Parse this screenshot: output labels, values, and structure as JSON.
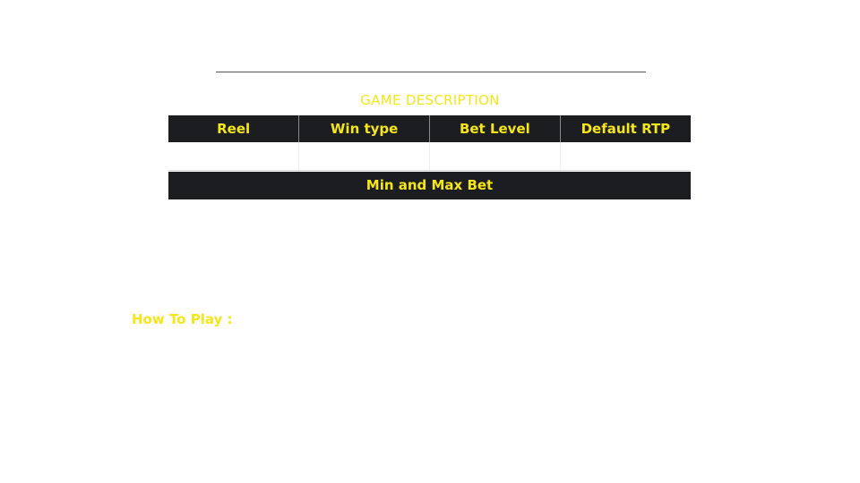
{
  "description": {
    "title": "GAME DESCRIPTION"
  },
  "info_table": {
    "headers": [
      "Reel",
      "Win type",
      "Bet Level",
      "Default RTP"
    ],
    "values": [
      "",
      "",
      "",
      ""
    ]
  },
  "bet": {
    "label": "Min and Max Bet"
  },
  "how_to_play": {
    "label": "How To Play :"
  },
  "colors": {
    "accent": "#f5e61a",
    "header_bg": "#1c1d21",
    "page_bg": "#ffffff"
  }
}
